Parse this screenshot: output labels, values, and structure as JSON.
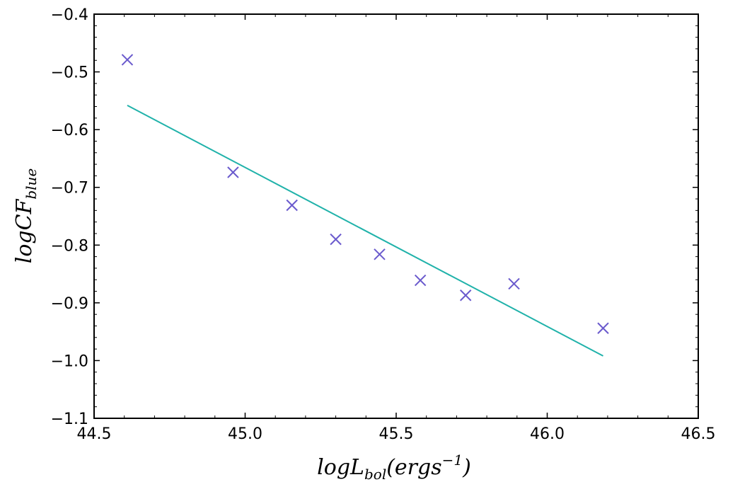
{
  "chart_data": {
    "type": "scatter",
    "xlabel": {
      "base": "logL",
      "sub": "bol",
      "rest": "(ergs",
      "sup": "−1",
      "close": ")"
    },
    "ylabel": {
      "base": "logCF",
      "sub": "blue"
    },
    "xlim": [
      44.5,
      46.5
    ],
    "ylim": [
      -1.1,
      -0.4
    ],
    "xticks": [
      44.5,
      45.0,
      45.5,
      46.0,
      46.5
    ],
    "xtick_labels": [
      "44.5",
      "45.0",
      "45.5",
      "46.0",
      "46.5"
    ],
    "yticks": [
      -1.1,
      -1.0,
      -0.9,
      -0.8,
      -0.7,
      -0.6,
      -0.5,
      -0.4
    ],
    "ytick_labels": [
      "−1.1",
      "−1.0",
      "−0.9",
      "−0.8",
      "−0.7",
      "−0.6",
      "−0.5",
      "−0.4"
    ],
    "grid": false,
    "series": [
      {
        "type": "scatter",
        "marker": "x",
        "color": "#6a5acd",
        "x": [
          44.61,
          44.96,
          45.155,
          45.3,
          45.445,
          45.58,
          45.73,
          45.89,
          46.185
        ],
        "y": [
          -0.479,
          -0.674,
          -0.731,
          -0.79,
          -0.816,
          -0.861,
          -0.887,
          -0.867,
          -0.944
        ]
      },
      {
        "type": "line",
        "color": "#20b2aa",
        "x": [
          44.61,
          46.185
        ],
        "y": [
          -0.558,
          -0.992
        ]
      }
    ]
  }
}
